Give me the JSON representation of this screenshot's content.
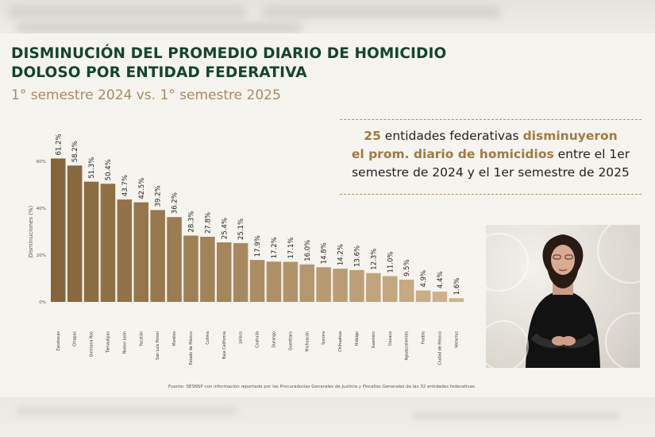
{
  "title_line1": "DISMINUCIÓN DEL PROMEDIO DIARIO DE HOMICIDIO",
  "title_line2": "DOLOSO POR ENTIDAD FEDERATIVA",
  "subtitle": "1° semestre 2024 vs. 1° semestre 2025",
  "callout": {
    "num": "25",
    "part1": " entidades federativas ",
    "hl1": "disminuyeron",
    "hl2": "el prom. diario de homicidios",
    "part2": " entre el 1er",
    "part3": "semestre de 2024 y el 1er semestre de 2025"
  },
  "source": "Fuente: SESNSP con información reportada por las Procuradurías Generales de Justicia y Fiscalías Generales de las 32 entidades federativas",
  "colors": {
    "title": "#14452f",
    "accent": "#a07a45",
    "bar_dark": "#86653a",
    "bar_light": "#cfb48e"
  },
  "chart_data": {
    "type": "bar",
    "ylabel": "Disminuciones (%)",
    "ylim": [
      0,
      60
    ],
    "yticks": [
      0,
      20,
      40,
      60
    ],
    "ytick_labels": [
      "0%",
      "20%",
      "40%",
      "60%"
    ],
    "categories": [
      "Zacatecas",
      "Chiapas",
      "Quintana Roo",
      "Tamaulipas",
      "Nuevo León",
      "Yucatán",
      "San Luis Potosí",
      "Morelos",
      "Estado de México",
      "Colima",
      "Baja California",
      "Jalisco",
      "Coahuila",
      "Durango",
      "Querétaro",
      "Michoacán",
      "Sonora",
      "Chihuahua",
      "Hidalgo",
      "Guerrero",
      "Oaxaca",
      "Aguascalientes",
      "Puebla",
      "Ciudad de México",
      "Veracruz"
    ],
    "values": [
      61.2,
      58.2,
      51.3,
      50.4,
      43.7,
      42.5,
      39.2,
      36.2,
      28.3,
      27.8,
      25.4,
      25.1,
      17.9,
      17.2,
      17.1,
      16.0,
      14.8,
      14.2,
      13.6,
      12.3,
      11.0,
      9.5,
      4.9,
      4.4,
      1.6
    ],
    "value_labels": [
      "61.2%",
      "58.2%",
      "51.3%",
      "50.4%",
      "43.7%",
      "42.5%",
      "39.2%",
      "36.2%",
      "28.3%",
      "27.8%",
      "25.4%",
      "25.1%",
      "17.9%",
      "17.2%",
      "17.1%",
      "16.0%",
      "14.8%",
      "14.2%",
      "13.6%",
      "12.3%",
      "11.0%",
      "9.5%",
      "4.9%",
      "4.4%",
      "1.6%"
    ],
    "grid": false
  }
}
